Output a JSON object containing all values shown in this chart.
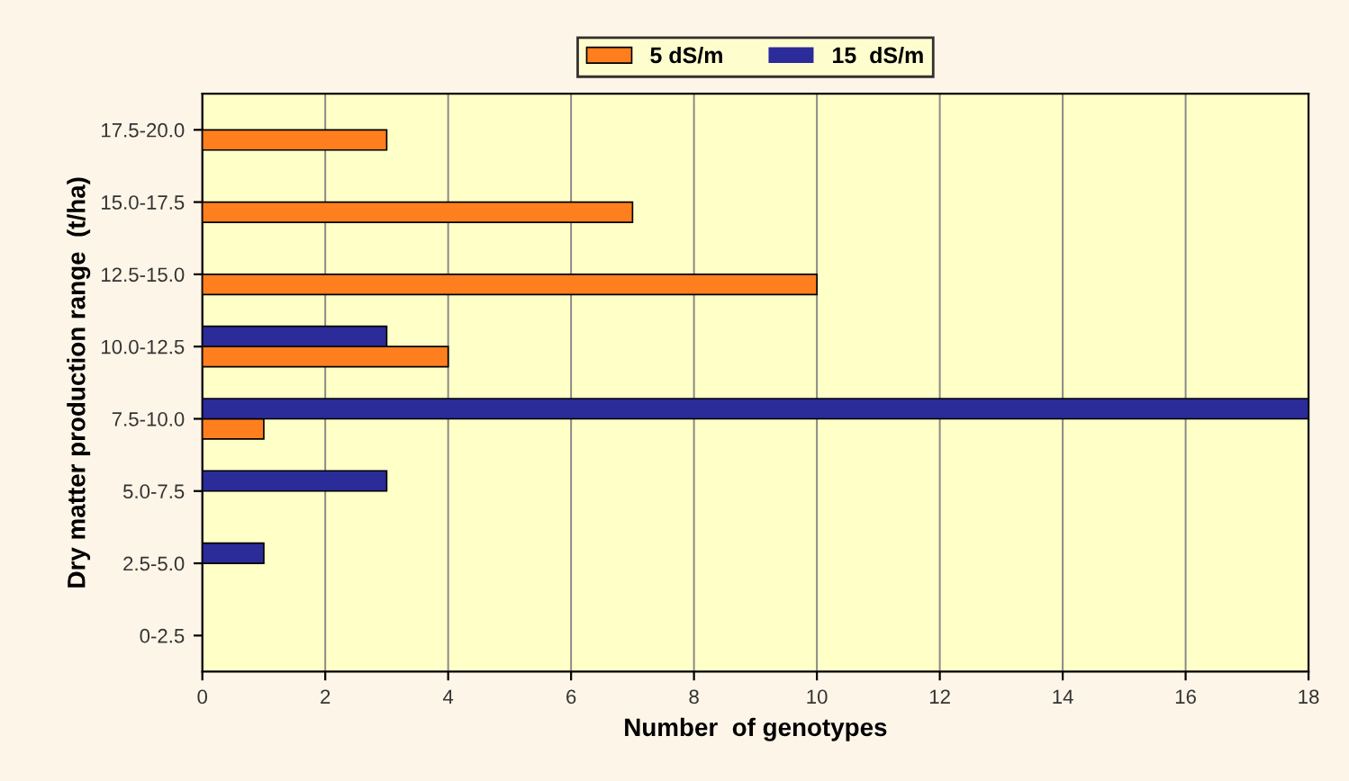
{
  "chart_data": {
    "type": "bar",
    "orientation": "horizontal",
    "categories": [
      "17.5-20.0",
      "15.0-17.5",
      "12.5-15.0",
      "10.0-12.5",
      "7.5-10.0",
      "5.0-7.5",
      "2.5-5.0",
      "0-2.5"
    ],
    "series": [
      {
        "name": "5 dS/m",
        "color": "#ff7f1e",
        "values": [
          3,
          7,
          10,
          4,
          1,
          0,
          0,
          0
        ]
      },
      {
        "name": "15  dS/m",
        "color": "#2b2b9a",
        "values": [
          0,
          0,
          0,
          3,
          18,
          3,
          1,
          0
        ]
      }
    ],
    "xlabel": "Number  of genotypes",
    "ylabel": "Dry matter production range  (t/ha)",
    "xlim": [
      0,
      18
    ],
    "xticks": [
      0,
      2,
      4,
      6,
      8,
      10,
      12,
      14,
      16,
      18
    ],
    "grid": "x",
    "legend": "top"
  }
}
